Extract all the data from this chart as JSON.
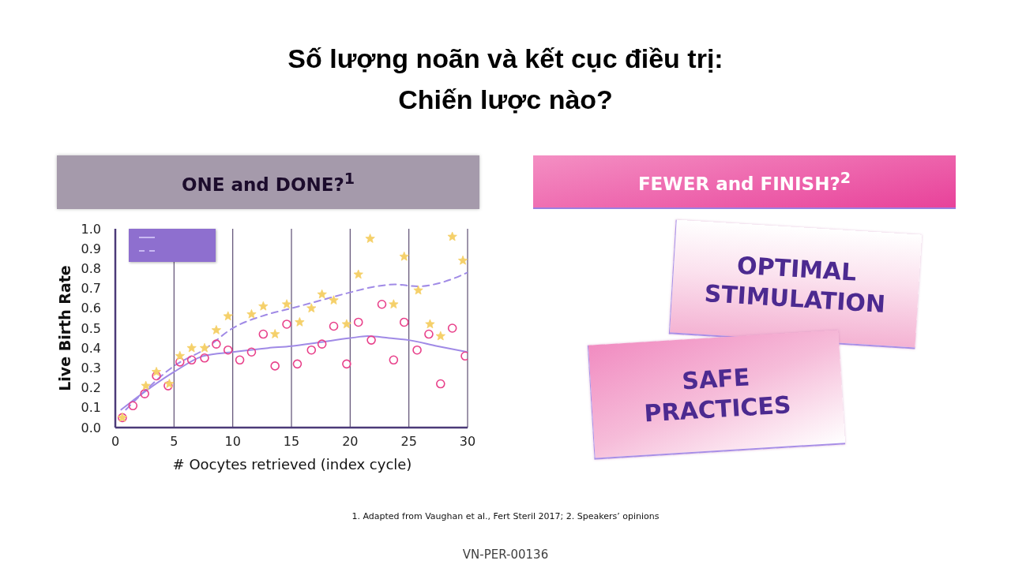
{
  "chart_data": [
    {
      "type": "scatter",
      "title": "Số lượng noãn và kết cục điều trị:\nChiến lược nào?",
      "subtitle": "ONE and DONE?$^{1}$",
      "xlabel": "# Oocytes retrieved (index cycle)",
      "ylabel": "Live Birth Rate",
      "xlim": [
        0,
        30
      ],
      "xticks": [
        0,
        5,
        10,
        15,
        20,
        25,
        30
      ],
      "ylim": [
        0,
        1
      ],
      "yticks": [
        {
          "value": 0,
          "label": "0.0"
        },
        0.1,
        0.2,
        0.3,
        0.4,
        0.5,
        0.6,
        0.7,
        0.8,
        0.9,
        {
          "value": 1,
          "label": "1.0"
        }
      ],
      "grid": "x",
      "series": [
        {
          "type": "scatter",
          "marker": "circle",
          "color": "#e8408a",
          "x": [
            0.6,
            1.5,
            2.5,
            3.5,
            4.5,
            5.5,
            6.5,
            7.6,
            8.6,
            9.6,
            10.6,
            11.6,
            12.6,
            13.6,
            14.6,
            15.5,
            16.7,
            17.6,
            18.6,
            19.7,
            20.7,
            21.8,
            22.7,
            23.7,
            24.6,
            25.7,
            26.7,
            27.7,
            28.7,
            29.8
          ],
          "values": [
            0.05,
            0.11,
            0.17,
            0.26,
            0.21,
            0.33,
            0.34,
            0.35,
            0.42,
            0.39,
            0.34,
            0.38,
            0.47,
            0.31,
            0.52,
            0.32,
            0.39,
            0.42,
            0.51,
            0.32,
            0.53,
            0.44,
            0.62,
            0.34,
            0.53,
            0.39,
            0.47,
            0.22,
            0.5,
            0.36
          ]
        },
        {
          "type": "scatter",
          "marker": "star",
          "color": "#f5d06a",
          "x": [
            0.6,
            2.6,
            3.5,
            4.6,
            5.5,
            6.5,
            7.6,
            8.6,
            9.6,
            11.6,
            12.6,
            13.6,
            14.6,
            15.7,
            16.7,
            17.6,
            18.6,
            19.7,
            20.7,
            21.7,
            23.7,
            24.6,
            25.8,
            26.8,
            27.7,
            28.7,
            29.6
          ],
          "values": [
            0.05,
            0.21,
            0.28,
            0.22,
            0.36,
            0.4,
            0.4,
            0.49,
            0.56,
            0.57,
            0.61,
            0.47,
            0.62,
            0.53,
            0.6,
            0.67,
            0.64,
            0.52,
            0.77,
            0.95,
            0.62,
            0.86,
            0.69,
            0.52,
            0.46,
            0.96,
            0.84
          ]
        },
        {
          "type": "line",
          "line_style": "solid",
          "color": "#a08ae6",
          "x": [
            0.5,
            2.5,
            5,
            7.5,
            10,
            13,
            15,
            17.5,
            20,
            21.5,
            23.3,
            25,
            27.4,
            30
          ],
          "values": [
            0.09,
            0.18,
            0.28,
            0.36,
            0.38,
            0.4,
            0.41,
            0.43,
            0.45,
            0.46,
            0.45,
            0.44,
            0.41,
            0.38
          ]
        },
        {
          "type": "line",
          "line_style": "dashed",
          "color": "#a08ae6",
          "x": [
            0.9,
            2.8,
            5,
            7.5,
            10,
            13,
            15,
            17.5,
            20,
            22.2,
            23.8,
            25.8,
            27.8,
            30
          ],
          "values": [
            0.09,
            0.2,
            0.31,
            0.39,
            0.5,
            0.57,
            0.6,
            0.64,
            0.68,
            0.71,
            0.72,
            0.71,
            0.73,
            0.78
          ]
        }
      ],
      "annotations": [
        "1. Adapted from Vaughan et al., Fert Steril 2017; 2. Speakers’ opinions",
        "VN-PER-00136"
      ]
    },
    {
      "type": "other",
      "title": "FEWER and FINISH?$^{2}$",
      "annotations": [
        "OPTIMAL STIMULATION",
        "SAFE PRACTICES"
      ]
    }
  ]
}
